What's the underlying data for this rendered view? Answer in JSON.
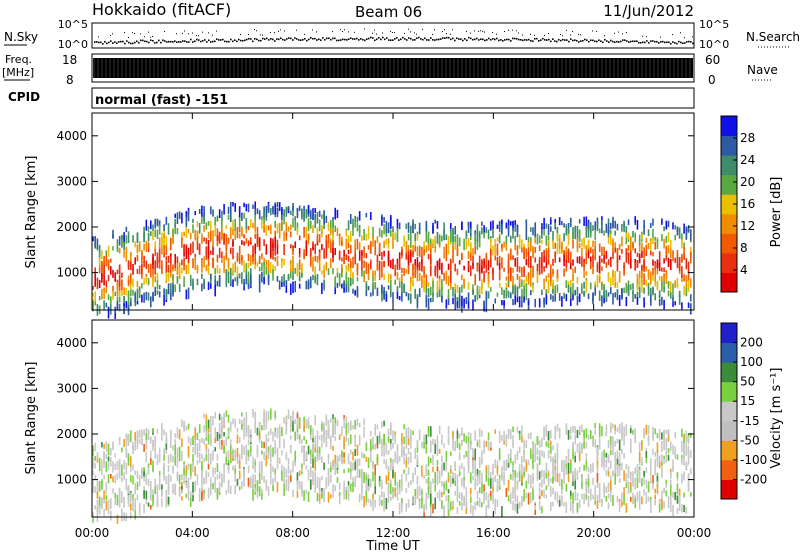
{
  "header": {
    "site": "Hokkaido (fitACF)",
    "beam": "Beam 06",
    "date": "11/Jun/2012"
  },
  "strips": {
    "nsky_label": "N.Sky",
    "nsky_ticks": [
      "10^5",
      "10^0"
    ],
    "nsearch_label": "N.Search",
    "nsearch_ticks": [
      "10^5",
      "10^0"
    ],
    "freq_label": "Freq.",
    "freq_unit": "[MHz]",
    "freq_ticks": [
      "18",
      "8"
    ],
    "nave_label": "Nave",
    "nave_ticks": [
      "60",
      "0"
    ],
    "cpid_label": "CPID",
    "cpid_text": "normal (fast) -151"
  },
  "colors": {
    "power_scale": [
      "#1010e8",
      "#2d5aa0",
      "#3e8c6a",
      "#5aa842",
      "#e8c000",
      "#f08c00",
      "#f05a00",
      "#e83010",
      "#e00000"
    ],
    "velocity_scale": [
      "#2020c8",
      "#2a5fa8",
      "#3a8c3a",
      "#7ad040",
      "#c8c8c8",
      "#c0c0c0",
      "#f0a020",
      "#f06010",
      "#e00000"
    ],
    "freq_fill": "#000000"
  },
  "chart_data": [
    {
      "type": "heatmap",
      "panel": "power",
      "ylabel": "Slant Range [km]",
      "x_ticks": [
        "00:00",
        "04:00",
        "08:00",
        "12:00",
        "16:00",
        "20:00",
        "00:00"
      ],
      "y_ticks": [
        "1000",
        "2000",
        "3000",
        "4000"
      ],
      "xlim_hours": [
        0,
        24
      ],
      "ylim_km": [
        180,
        4500
      ],
      "colorbar": {
        "label": "Power [dB]",
        "ticks": [
          "28",
          "24",
          "20",
          "16",
          "12",
          "8",
          "4"
        ],
        "range": [
          0,
          30
        ]
      }
    },
    {
      "type": "heatmap",
      "panel": "velocity",
      "ylabel": "Slant Range [km]",
      "xlabel": "Time UT",
      "x_ticks": [
        "00:00",
        "04:00",
        "08:00",
        "12:00",
        "16:00",
        "20:00",
        "00:00"
      ],
      "y_ticks": [
        "1000",
        "2000",
        "3000",
        "4000"
      ],
      "xlim_hours": [
        0,
        24
      ],
      "ylim_km": [
        180,
        4500
      ],
      "colorbar": {
        "label": "Velocity [m s⁻¹]",
        "ticks": [
          "200",
          "100",
          "50",
          "15",
          "-15",
          "-50",
          "-100",
          "-200"
        ],
        "range": [
          -250,
          250
        ]
      }
    }
  ]
}
